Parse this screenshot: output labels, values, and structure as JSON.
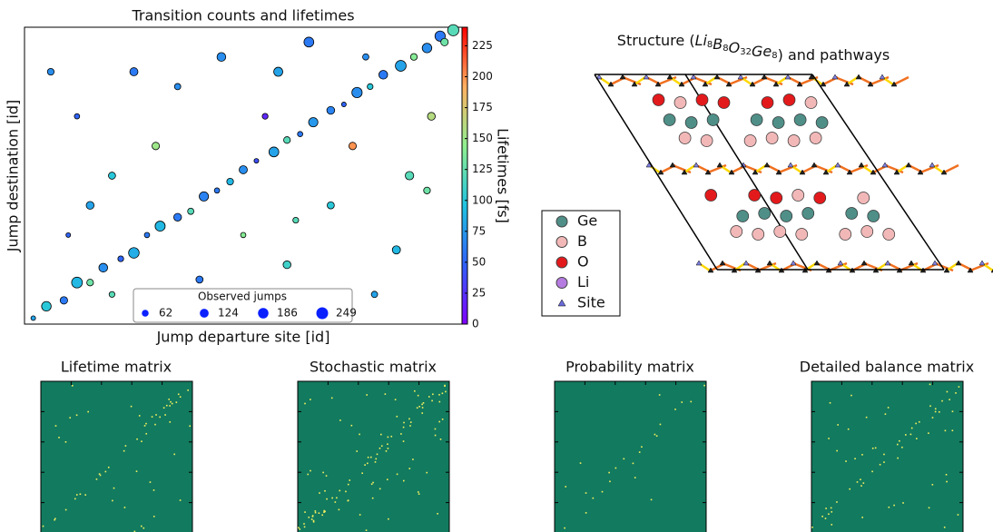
{
  "chart_data": [
    {
      "type": "scatter",
      "title": "Transition counts and lifetimes",
      "x_label": "Jump departure site [id]",
      "y_label": "Jump destination [id]",
      "colorbar_label": "Lifetimes [fs]",
      "xlim": [
        0,
        100
      ],
      "ylim": [
        0,
        100
      ],
      "clim": [
        0,
        240
      ],
      "cticks": [
        0,
        25,
        50,
        75,
        100,
        125,
        150,
        175,
        200,
        225
      ],
      "x": [
        2,
        5,
        9,
        12,
        15,
        18,
        22,
        25,
        28,
        31,
        35,
        38,
        41,
        44,
        47,
        50,
        53,
        57,
        60,
        63,
        66,
        70,
        73,
        76,
        79,
        82,
        86,
        89,
        92,
        95,
        98,
        96,
        20,
        6,
        12,
        30,
        45,
        60,
        70,
        80,
        88,
        55,
        25,
        35,
        65,
        75,
        92,
        15,
        40,
        50,
        85,
        10,
        78,
        58,
        62,
        93,
        20
      ],
      "values": [
        2,
        6,
        8,
        14,
        14,
        19,
        22,
        24,
        30,
        33,
        36,
        38,
        43,
        45,
        48,
        52,
        55,
        58,
        62,
        64,
        68,
        72,
        74,
        78,
        80,
        84,
        87,
        90,
        93,
        97,
        99,
        95,
        10,
        85,
        70,
        60,
        90,
        20,
        40,
        10,
        50,
        70,
        85,
        80,
        95,
        60,
        45,
        40,
        15,
        30,
        25,
        30,
        90,
        85,
        35,
        70,
        50
      ],
      "sizes": [
        20,
        150,
        80,
        200,
        60,
        120,
        40,
        190,
        30,
        170,
        90,
        50,
        140,
        30,
        60,
        100,
        20,
        160,
        60,
        30,
        140,
        90,
        20,
        180,
        40,
        120,
        200,
        60,
        150,
        180,
        220,
        80,
        40,
        60,
        30,
        80,
        120,
        90,
        70,
        50,
        110,
        40,
        100,
        50,
        160,
        80,
        60,
        90,
        70,
        30,
        100,
        20,
        50,
        130,
        40,
        90,
        70
      ],
      "lifetimes": [
        80,
        100,
        60,
        90,
        130,
        70,
        50,
        85,
        60,
        90,
        60,
        120,
        65,
        60,
        90,
        70,
        40,
        80,
        120,
        60,
        75,
        65,
        50,
        70,
        100,
        60,
        80,
        140,
        70,
        60,
        120,
        130,
        120,
        70,
        50,
        150,
        70,
        110,
        100,
        80,
        120,
        20,
        60,
        70,
        60,
        200,
        130,
        80,
        60,
        140,
        90,
        50,
        70,
        80,
        120,
        160,
        100
      ],
      "size_legend": {
        "title": "Observed jumps",
        "values": [
          62,
          124,
          186,
          249
        ]
      }
    },
    {
      "type": "structure",
      "title_prefix": "Structure (",
      "formula": [
        [
          "Li",
          "8"
        ],
        [
          "B",
          "8"
        ],
        [
          "O",
          "32"
        ],
        [
          "Ge",
          "8"
        ]
      ],
      "title_suffix": ") and pathways",
      "legend": [
        {
          "name": "Ge",
          "color": "#4f8f88"
        },
        {
          "name": "B",
          "color": "#f2b8b8"
        },
        {
          "name": "O",
          "color": "#e31a1c"
        },
        {
          "name": "Li",
          "color": "#b57be0"
        },
        {
          "name": "Site",
          "color": "#6a6ad8"
        }
      ]
    },
    {
      "type": "matrix",
      "title": "Lifetime matrix"
    },
    {
      "type": "matrix",
      "title": "Stochastic matrix"
    },
    {
      "type": "matrix",
      "title": "Probability matrix"
    },
    {
      "type": "matrix",
      "title": "Detailed balance matrix"
    }
  ]
}
